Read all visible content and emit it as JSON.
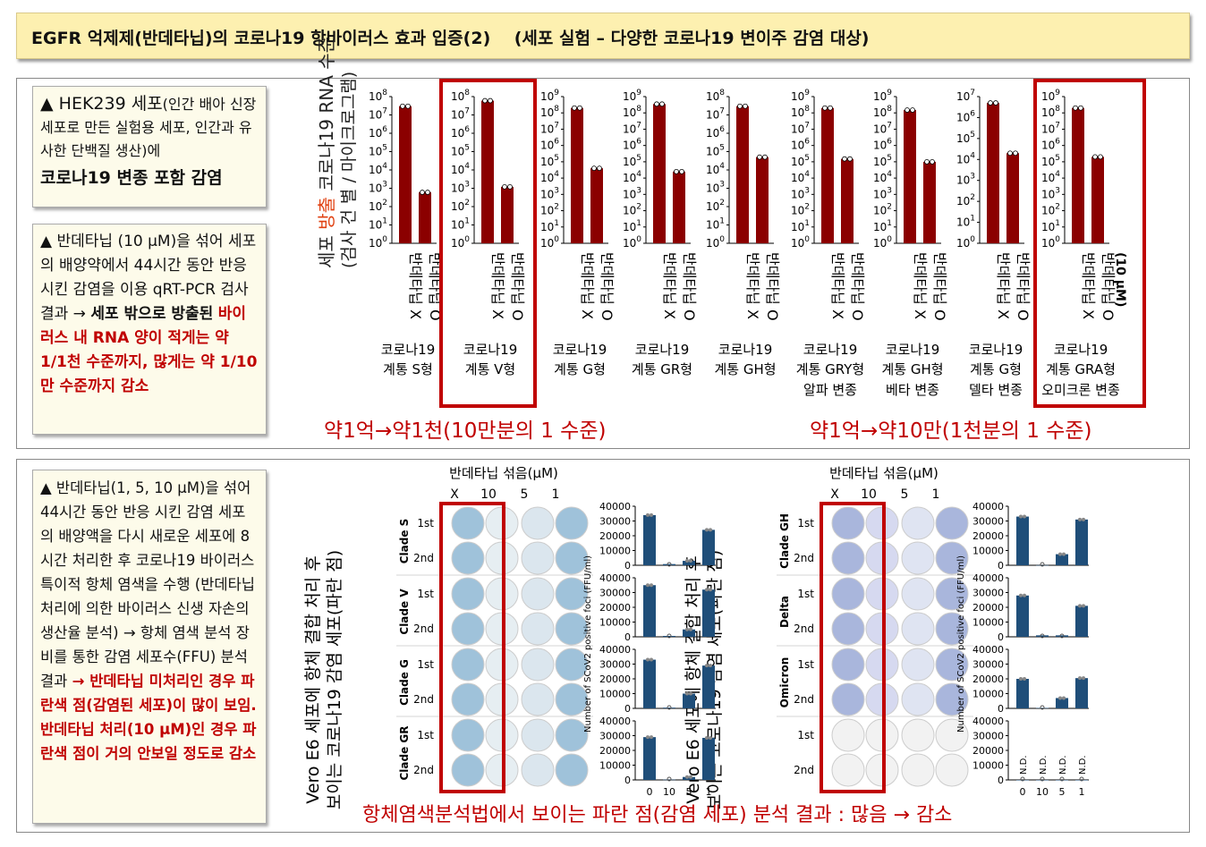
{
  "banner_title": "EGFR 억제제(반데타닙)의 코로나19 항바이러스 효과 입증(2)    (세포 실험 – 다양한 코로나19 변이주 감염 대상)",
  "top_notes": {
    "n1_a": "▲ HEK239 세포",
    "n1_b": "(인간 배아 신장세포로 만든 실험용 세포, 인간과 유사한 단백질 생산)에",
    "n1_c": "코로나19 변종 포함 감염",
    "n2_a": "▲ 반데타닙 (10 μM)을 섞어 세포의 배양약에서 44시간 동안 반응 시킨 감염을 이용 qRT-PCR 검사 결과 →",
    "n2_b": "세포 밖으로 방출된",
    "n2_c": "바이러스 내 RNA 양이 적게는 약 1/1천 수준까지, 많게는 약 1/10만 수준까지 감소"
  },
  "chart_top": {
    "ylabel_1": "세포",
    "ylabel_red": "방출",
    "ylabel_2": "코로나19 RNA 수준",
    "ylabel_3": "(검사 건 별 / 마이크로그램)",
    "bar_x_label": "반데타닙 X",
    "bar_o_label": "반데타닙 O",
    "unit_note": "(10 μM)",
    "caption_left": "약1억→약1천(10만분의 1 수준)",
    "caption_right": "약1억→약10만(1천분의 1 수준)"
  },
  "chart_data": {
    "type": "bar",
    "yscale": "log",
    "panels": [
      {
        "name_1": "코로나19",
        "name_2": "계통 S형",
        "name_3": "",
        "ymax_exp": 8,
        "values": [
          30000000.0,
          600.0
        ],
        "highlight": false
      },
      {
        "name_1": "코로나19",
        "name_2": "계통 V형",
        "name_3": "",
        "ymax_exp": 8,
        "values": [
          60000000.0,
          1200.0
        ],
        "highlight": true
      },
      {
        "name_1": "코로나19",
        "name_2": "계통 G형",
        "name_3": "",
        "ymax_exp": 9,
        "values": [
          200000000.0,
          40000.0
        ],
        "highlight": false
      },
      {
        "name_1": "코로나19",
        "name_2": "계통 GR형",
        "name_3": "",
        "ymax_exp": 9,
        "values": [
          350000000.0,
          25000.0
        ],
        "highlight": false
      },
      {
        "name_1": "코로나19",
        "name_2": "계통 GH형",
        "name_3": "",
        "ymax_exp": 8,
        "values": [
          30000000.0,
          50000.0
        ],
        "highlight": false
      },
      {
        "name_1": "코로나19",
        "name_2": "계통 GRY형",
        "name_3": "알파 변종",
        "ymax_exp": 9,
        "values": [
          200000000.0,
          150000.0
        ],
        "highlight": false
      },
      {
        "name_1": "코로나19",
        "name_2": "계통 GH형",
        "name_3": "베타 변종",
        "ymax_exp": 9,
        "values": [
          150000000.0,
          100000.0
        ],
        "highlight": false
      },
      {
        "name_1": "코로나19",
        "name_2": "계통 G형",
        "name_3": "델타 변종",
        "ymax_exp": 7,
        "values": [
          5000000.0,
          20000.0
        ],
        "highlight": false
      },
      {
        "name_1": "코로나19",
        "name_2": "계통 GRA형",
        "name_3": "오미크론 변종",
        "ymax_exp": 9,
        "values": [
          200000000.0,
          200000.0
        ],
        "highlight": true
      }
    ]
  },
  "bottom_note": {
    "a": "▲ 반데타닙(1, 5, 10 μM)을 섞어 44시간 동안 반응 시킨 감염 세포의 배양액을 다시 새로운 세포에 8시간 처리한 후 코로나19 바이러스 특이적 항체 염색을 수행 (반데타닙 처리에 의한 바이러스 신생 자손의 생산율 분석) → 항체 염색 분석 장비를 통한 감염 세포수(FFU) 분석 결과",
    "b": "→ 반데타닙 미처리인 경우 파란색 점(감염된 세포)이 많이 보임. 반데타닙 처리(10 μM)인 경우 파란색 점이 거의 안보일 정도로 감소"
  },
  "plaque": {
    "header": "반데타닙 섞음(μM)",
    "cols": [
      "X",
      "10",
      "5",
      "1"
    ],
    "rows": [
      "1st",
      "2nd"
    ],
    "ylabel_1": "Vero E6 세포에 항체 결합 처리 후",
    "ylabel_2": "보이는 코로나19 감염 세포(파란 점)",
    "left_clades": [
      "Clade S",
      "Clade V",
      "Clade G",
      "Clade GR"
    ],
    "right_clades": [
      "Clade GH",
      "Delta",
      "Omicron",
      ""
    ],
    "bar_ylabel": "Number of SCoV2 positive foci (FFU/ml)",
    "bar_ticks": [
      "0",
      "10000",
      "20000",
      "30000",
      "40000"
    ],
    "bar_x": [
      "0",
      "10",
      "5",
      "1"
    ],
    "nd": "N.D.",
    "caption": "항체염색분석법에서 보이는 파란 점(감염 세포) 분석 결과 : 많음 → 감소"
  },
  "ffu_data": {
    "left": [
      [
        34000,
        800,
        3000,
        24000
      ],
      [
        35000,
        600,
        5000,
        32000
      ],
      [
        33000,
        500,
        10000,
        29000
      ],
      [
        29000,
        200,
        2000,
        28500
      ]
    ],
    "right": [
      [
        33000,
        100,
        7500,
        31000
      ],
      [
        28000,
        1000,
        1000,
        21000
      ],
      [
        20000,
        300,
        7000,
        20500
      ],
      [
        0,
        0,
        0,
        0
      ]
    ],
    "right_nd": [
      false,
      false,
      false,
      true
    ]
  },
  "colors": {
    "bar_red": "#8b0000",
    "bar_navy": "#1f4e79",
    "highlight": "#c00000",
    "plaque_blue": "#8fb8d6"
  }
}
